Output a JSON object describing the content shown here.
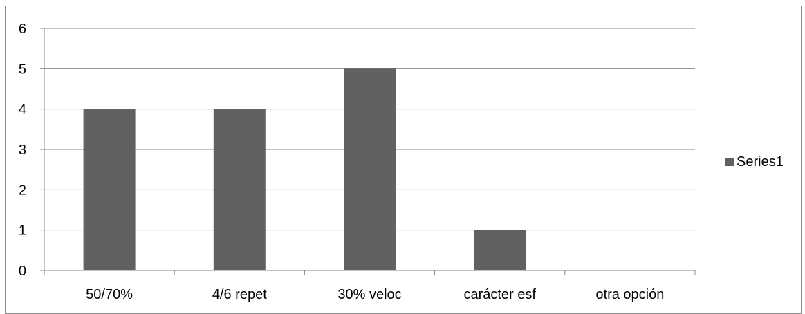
{
  "chart_data": {
    "type": "bar",
    "categories": [
      "50/70%",
      "4/6 repet",
      "30% veloc",
      "carácter esf",
      "otra opción"
    ],
    "series": [
      {
        "name": "Series1",
        "values": [
          4,
          4,
          5,
          1,
          0
        ],
        "color": "#616161"
      }
    ],
    "ylim": [
      0,
      6
    ],
    "yticks": [
      0,
      1,
      2,
      3,
      4,
      5,
      6
    ],
    "grid": true,
    "legend": "right",
    "title": "",
    "xlabel": "",
    "ylabel": ""
  }
}
